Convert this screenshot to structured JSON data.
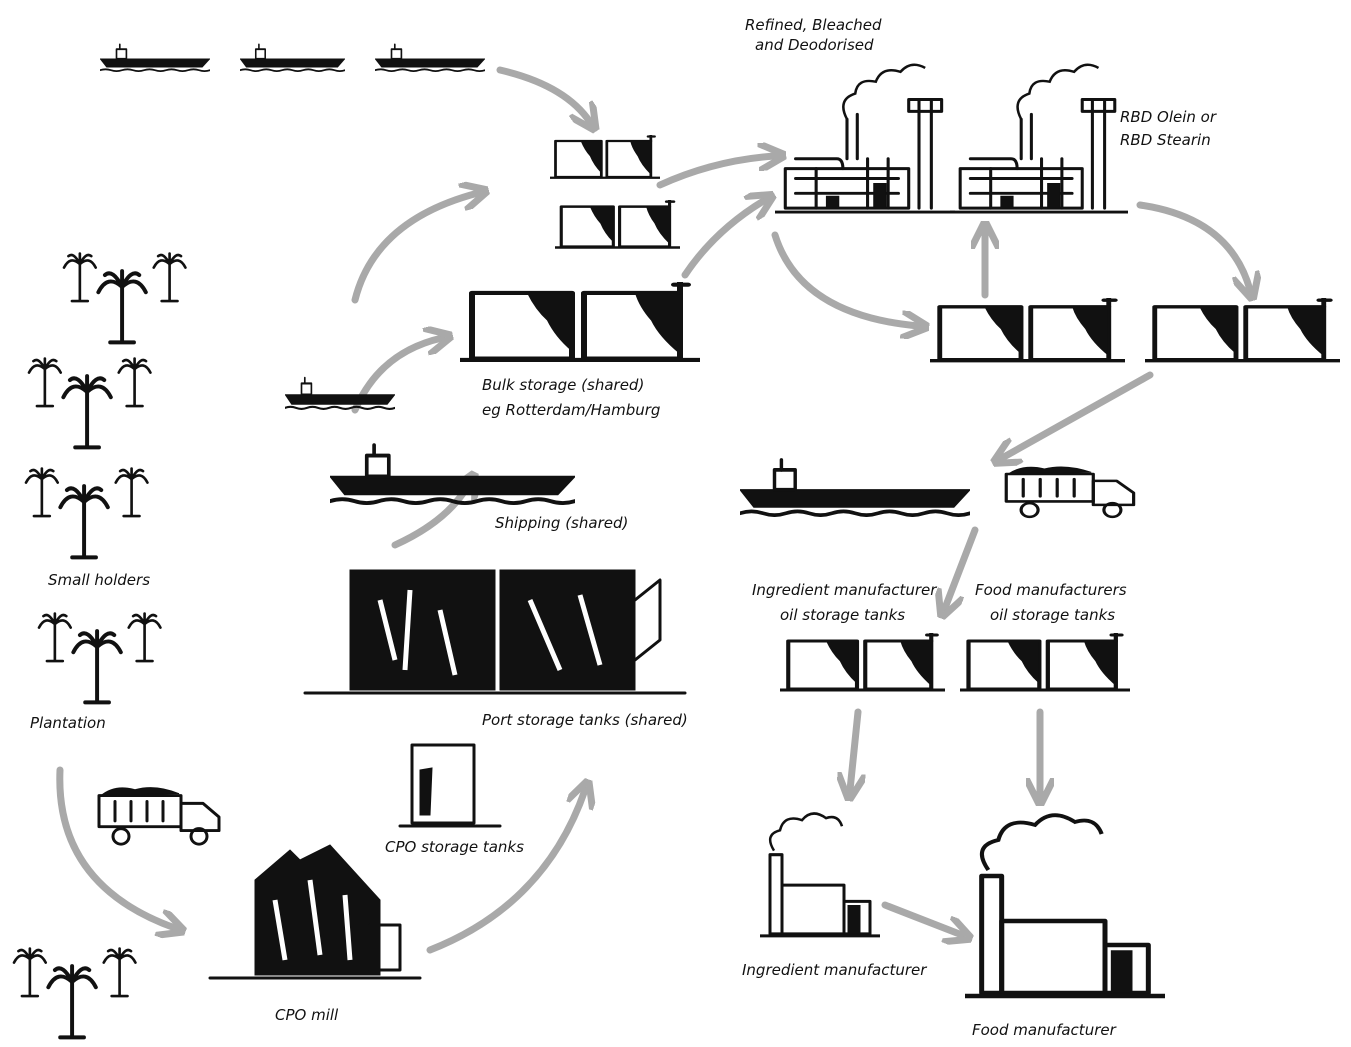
{
  "labels": {
    "rbd_process": [
      "Refined, Bleached",
      "and Deodorised"
    ],
    "rbd_products": [
      "RBD Olein or",
      "RBD Stearin"
    ],
    "bulk_storage": [
      "Bulk storage (shared)",
      "eg Rotterdam/Hamburg"
    ],
    "shipping": "Shipping (shared)",
    "small_holders": "Small holders",
    "plantation": "Plantation",
    "port_storage": "Port storage tanks (shared)",
    "cpo_storage": "CPO storage tanks",
    "cpo_mill": "CPO mill",
    "ingredient_tanks": [
      "Ingredient manufacturer",
      "oil storage tanks"
    ],
    "food_tanks": [
      "Food manufacturers",
      "oil storage tanks"
    ],
    "ingredient_manufacturer": "Ingredient manufacturer",
    "food_manufacturer": "Food manufacturer"
  }
}
